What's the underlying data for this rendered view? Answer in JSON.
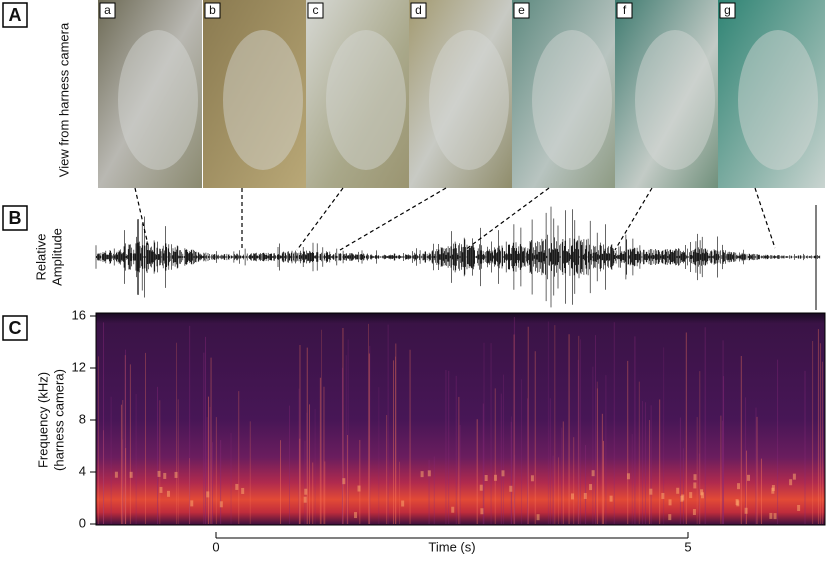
{
  "panels": {
    "A": {
      "label": "A",
      "ylabel": "View from harness camera",
      "frames": [
        "a",
        "b",
        "c",
        "d",
        "e",
        "f",
        "g"
      ]
    },
    "B": {
      "label": "B",
      "ylabel": [
        "Relative",
        "Amplitude"
      ]
    },
    "C": {
      "label": "C",
      "ylabel": [
        "Frequency (kHz)",
        "(harness camera)"
      ],
      "yticks": [
        0,
        4,
        8,
        12,
        16
      ],
      "xlabel": "Time (s)",
      "xticks": [
        0,
        5
      ]
    }
  }
}
